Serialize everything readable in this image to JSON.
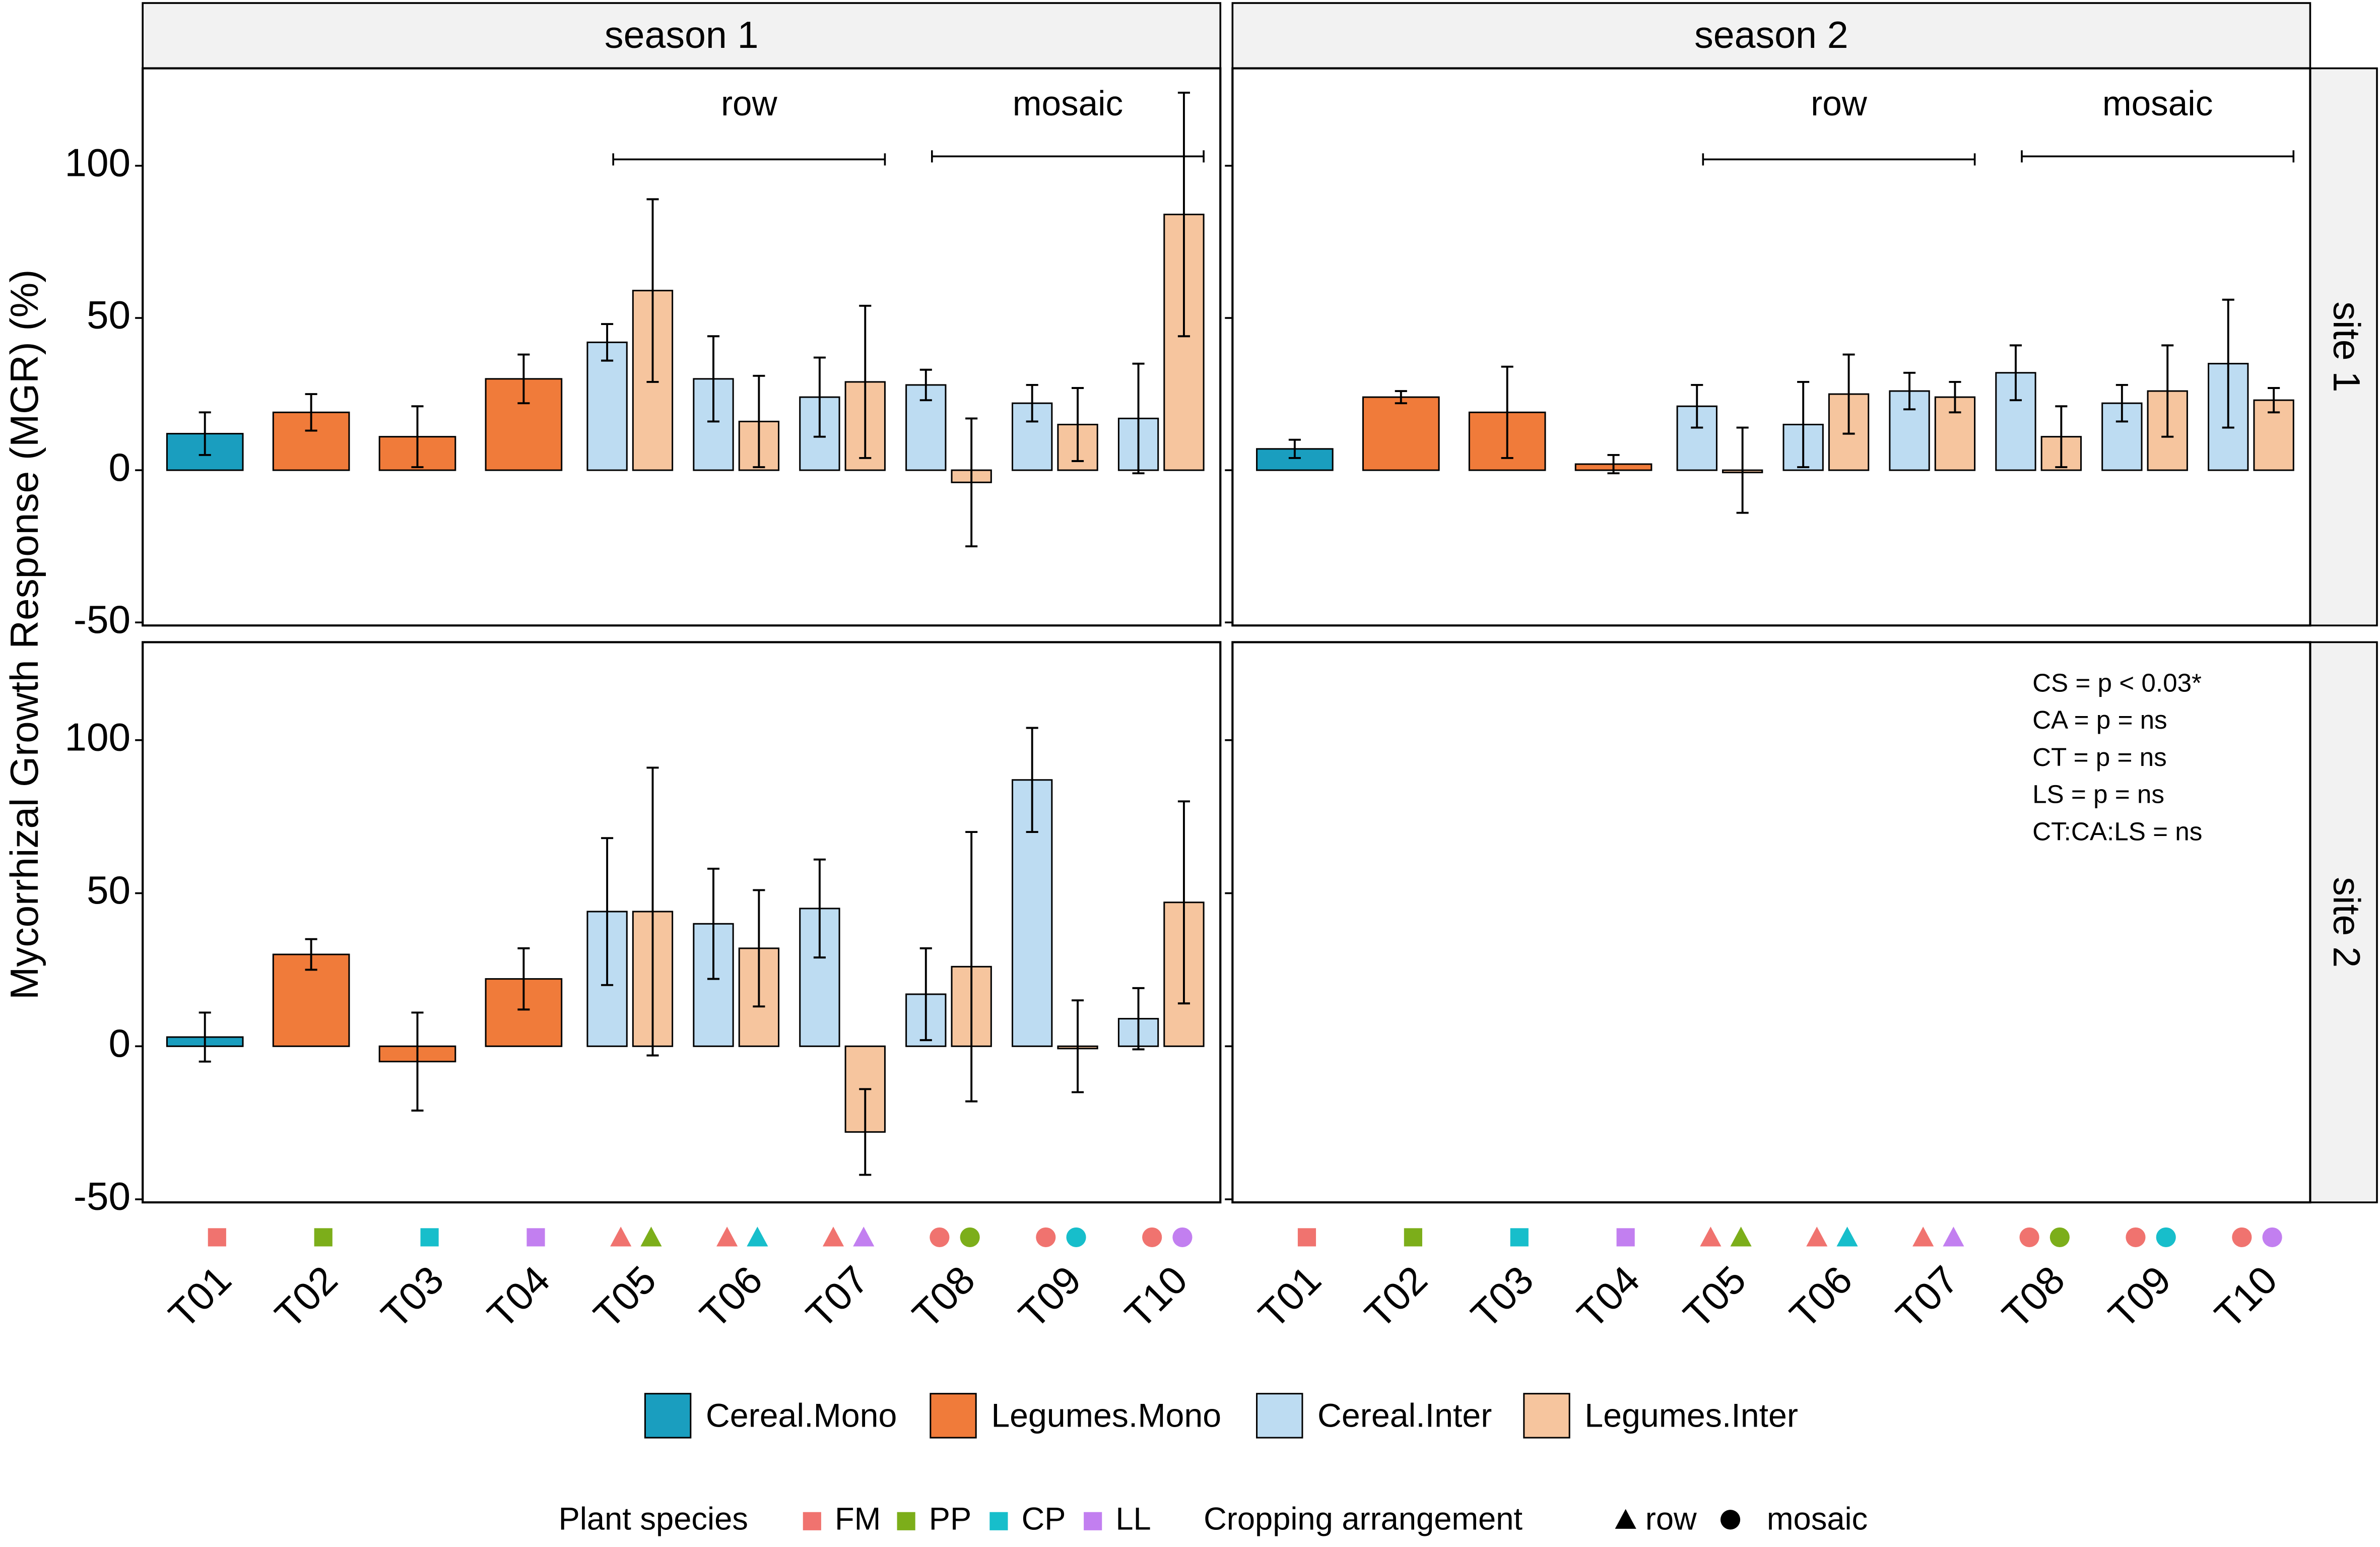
{
  "chart_data": {
    "type": "bar",
    "ylabel": "Mycorrhizal Growth Response (MGR) (%)",
    "columns": [
      "season 1",
      "season 2"
    ],
    "rows": [
      "site 1",
      "site 2"
    ],
    "categories": [
      "T01",
      "T02",
      "T03",
      "T04",
      "T05",
      "T06",
      "T07",
      "T08",
      "T09",
      "T10"
    ],
    "ylim": [
      -51,
      132
    ],
    "yticks": [
      -50,
      0,
      50,
      100
    ],
    "grid": false,
    "series": [
      {
        "name": "Cereal.Mono",
        "color": "#1a9ebf"
      },
      {
        "name": "Legumes.Mono",
        "color": "#f07b3a"
      },
      {
        "name": "Cereal.Inter",
        "color": "#bddcf2"
      },
      {
        "name": "Legumes.Inter",
        "color": "#f6c59e"
      }
    ],
    "groups": [
      "row",
      "mosaic"
    ],
    "panels": [
      {
        "values": [
          [
            12,
            null,
            null,
            null,
            null,
            null,
            null,
            null,
            null,
            null
          ],
          [
            null,
            19,
            11,
            30,
            null,
            null,
            null,
            null,
            null,
            null
          ],
          [
            null,
            null,
            null,
            null,
            42,
            30,
            24,
            28,
            22,
            17
          ],
          [
            null,
            null,
            null,
            null,
            59,
            16,
            29,
            -4,
            15,
            84
          ]
        ],
        "errors": [
          [
            7,
            null,
            null,
            null,
            null,
            null,
            null,
            null,
            null,
            null
          ],
          [
            null,
            6,
            10,
            8,
            null,
            null,
            null,
            null,
            null,
            null
          ],
          [
            null,
            null,
            null,
            null,
            6,
            14,
            13,
            5,
            6,
            18
          ],
          [
            null,
            null,
            null,
            null,
            30,
            15,
            25,
            21,
            12,
            40
          ]
        ]
      },
      {
        "values": [
          [
            7,
            null,
            null,
            null,
            null,
            null,
            null,
            null,
            null,
            null
          ],
          [
            null,
            24,
            19,
            2,
            null,
            null,
            null,
            null,
            null,
            null
          ],
          [
            null,
            null,
            null,
            null,
            21,
            15,
            26,
            32,
            22,
            35
          ],
          [
            null,
            null,
            null,
            null,
            0,
            25,
            24,
            11,
            26,
            23
          ]
        ],
        "errors": [
          [
            3,
            null,
            null,
            null,
            null,
            null,
            null,
            null,
            null,
            null
          ],
          [
            null,
            2,
            15,
            3,
            null,
            null,
            null,
            null,
            null,
            null
          ],
          [
            null,
            null,
            null,
            null,
            7,
            14,
            6,
            9,
            6,
            21
          ],
          [
            null,
            null,
            null,
            null,
            14,
            13,
            5,
            10,
            15,
            4
          ]
        ]
      },
      {
        "values": [
          [
            3,
            null,
            null,
            null,
            null,
            null,
            null,
            null,
            null,
            null
          ],
          [
            null,
            30,
            -5,
            22,
            null,
            null,
            null,
            null,
            null,
            null
          ],
          [
            null,
            null,
            null,
            null,
            44,
            40,
            45,
            17,
            87,
            9
          ],
          [
            null,
            null,
            null,
            null,
            44,
            32,
            -28,
            26,
            0,
            47
          ]
        ],
        "errors": [
          [
            8,
            null,
            null,
            null,
            null,
            null,
            null,
            null,
            null,
            null
          ],
          [
            null,
            5,
            16,
            10,
            null,
            null,
            null,
            null,
            null,
            null
          ],
          [
            null,
            null,
            null,
            null,
            24,
            18,
            16,
            15,
            17,
            10
          ],
          [
            null,
            null,
            null,
            null,
            47,
            19,
            14,
            44,
            15,
            33
          ]
        ]
      }
    ],
    "annotations": [
      "CS =  p < 0.03*",
      "CA = p = ns",
      "CT =  p = ns",
      "LS = p = ns",
      "CT:CA:LS = ns"
    ],
    "species_legend": {
      "title": "Plant species",
      "items": [
        {
          "name": "FM",
          "color": "#f0736f"
        },
        {
          "name": "PP",
          "color": "#7cae1a"
        },
        {
          "name": "CP",
          "color": "#17becb"
        },
        {
          "name": "LL",
          "color": "#c27ff0"
        }
      ]
    },
    "arrangement_legend": {
      "title": "Cropping arrangement",
      "items": [
        "row",
        "mosaic"
      ]
    }
  }
}
